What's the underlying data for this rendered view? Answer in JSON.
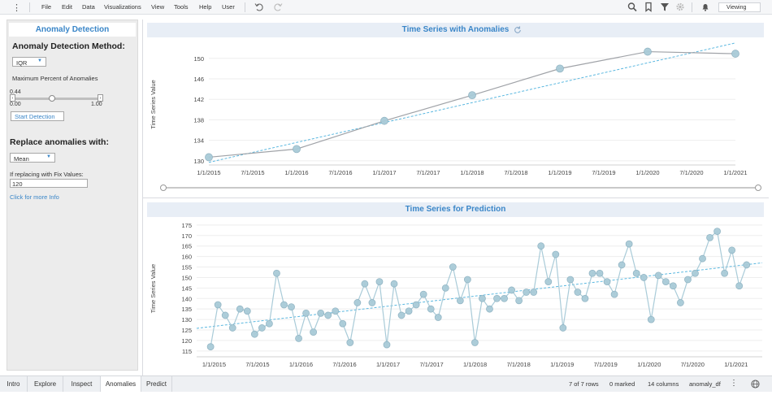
{
  "menubar": {
    "items": [
      "File",
      "Edit",
      "Data",
      "Visualizations",
      "View",
      "Tools",
      "Help",
      "User"
    ],
    "mode_label": "Viewing"
  },
  "left_panel": {
    "title": "Anomaly Detection",
    "method_label": "Anomaly Detection Method:",
    "method_value": "IQR",
    "max_percent_label": "Maximum Percent of Anomalies",
    "slider_value": "0.44",
    "slider_min": "0.00",
    "slider_max": "1.00",
    "slider_fraction": 0.44,
    "start_button": "Start Detection",
    "replace_label": "Replace anomalies with:",
    "replace_value": "Mean",
    "fix_label": "If replacing with Fix Values:",
    "fix_value": "120",
    "info_link": "Click for more Info"
  },
  "bottom": {
    "tabs": [
      "Intro",
      "Explore",
      "Inspect",
      "Anomalies",
      "Predict"
    ],
    "active_tab": "Anomalies",
    "rows": "7 of 7 rows",
    "marked": "0 marked",
    "columns": "14 columns",
    "table": "anomaly_df"
  },
  "chart_data": [
    {
      "type": "line",
      "title": "Time Series with Anomalies",
      "xlabel": "",
      "ylabel": "Time Series Value",
      "x_ticks": [
        "1/1/2015",
        "7/1/2015",
        "1/1/2016",
        "7/1/2016",
        "1/1/2017",
        "7/1/2017",
        "1/1/2018",
        "7/1/2018",
        "1/1/2019",
        "7/1/2019",
        "1/1/2020",
        "7/1/2020",
        "1/1/2021"
      ],
      "y_ticks": [
        130,
        134,
        138,
        142,
        146,
        150
      ],
      "ylim": [
        129.5,
        152.5
      ],
      "x_range": [
        2015.0,
        2021.0
      ],
      "series": [
        {
          "x": [
            2015.0,
            2016.0,
            2017.0,
            2018.0,
            2019.0,
            2020.0,
            2021.0
          ],
          "y": [
            130.7,
            132.3,
            137.8,
            142.8,
            148.0,
            151.3,
            150.9
          ]
        }
      ],
      "trendline": {
        "x": [
          2015.0,
          2021.0
        ],
        "y": [
          129.7,
          153.0
        ]
      },
      "colors": {
        "line": "#a0a3a8",
        "marker": "#a9cbd8",
        "trend": "#5bb8e0"
      }
    },
    {
      "type": "line",
      "title": "Time Series for Prediction",
      "xlabel": "",
      "ylabel": "Time Series Value",
      "x_ticks": [
        "1/1/2015",
        "7/1/2015",
        "1/1/2016",
        "7/1/2016",
        "1/1/2017",
        "7/1/2017",
        "1/1/2018",
        "7/1/2018",
        "1/1/2019",
        "7/1/2019",
        "1/1/2020",
        "7/1/2020",
        "1/1/2021"
      ],
      "y_ticks": [
        115,
        120,
        125,
        130,
        135,
        140,
        145,
        150,
        155,
        160,
        165,
        170,
        175
      ],
      "ylim": [
        113.0,
        176.5
      ],
      "x_range": [
        2014.8,
        2021.3
      ],
      "series": [
        {
          "y": [
            117,
            137,
            132,
            126,
            135,
            134,
            123,
            126,
            128,
            152,
            137,
            136,
            121,
            133,
            124,
            133,
            132,
            134,
            128,
            119,
            138,
            147,
            138,
            148,
            118,
            147,
            132,
            134,
            137,
            142,
            135,
            131,
            145,
            155,
            139,
            149,
            119,
            140,
            135,
            140,
            140,
            144,
            139,
            143,
            143,
            165,
            148,
            161,
            126,
            149,
            143,
            140,
            152,
            152,
            148,
            142,
            156,
            166,
            152,
            150,
            130,
            151,
            148,
            146,
            138,
            149,
            152,
            159,
            169,
            172,
            152,
            163,
            146,
            156
          ],
          "x_start": 2014.96,
          "x_end": 2021.12
        }
      ],
      "trendline": {
        "x": [
          2014.8,
          2021.3
        ],
        "y": [
          125.8,
          157.0
        ]
      },
      "colors": {
        "line": "#a9cbd8",
        "marker": "#a9cbd8",
        "trend": "#5bb8e0"
      }
    }
  ]
}
